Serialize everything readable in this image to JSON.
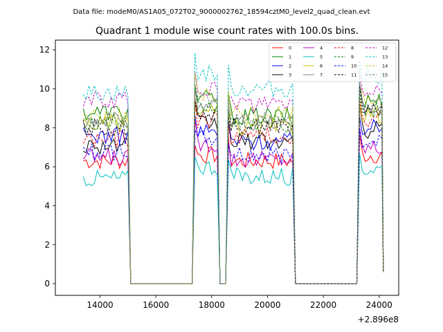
{
  "chart_data": {
    "type": "line",
    "suptitle": "Data file: modeM0/AS1A05_072T02_9000002762_18594cztM0_level2_quad_clean.evt",
    "title": "Quadrant 1 module wise count rates with 100.0s bins.",
    "xlabel": "",
    "ylabel": "",
    "x_offset_label": "+2.896e8",
    "xlim": [
      12400,
      24700
    ],
    "ylim": [
      -0.6,
      12.5
    ],
    "x_ticks": [
      14000,
      16000,
      18000,
      20000,
      22000,
      24000
    ],
    "x_tick_labels": [
      "14000",
      "16000",
      "18000",
      "20000",
      "22000",
      "24000"
    ],
    "y_ticks": [
      0,
      2,
      4,
      6,
      8,
      10,
      12
    ],
    "y_tick_labels": [
      "0",
      "2",
      "4",
      "6",
      "8",
      "10",
      "12"
    ],
    "legend_position": "top-right",
    "segments": [
      {
        "start": 13400,
        "end": 15000
      },
      {
        "start": 17400,
        "end": 18200
      },
      {
        "start": 18600,
        "end": 20900
      },
      {
        "start": 23300,
        "end": 24100
      }
    ],
    "gaps_zero": [
      {
        "start": 15100,
        "end": 17300
      },
      {
        "start": 18300,
        "end": 18400
      },
      {
        "start": 21000,
        "end": 23200
      }
    ],
    "series": [
      {
        "name": "0",
        "color": "#ff0000",
        "dash": "solid",
        "levels": [
          6.3,
          6.6,
          6.3,
          6.6
        ]
      },
      {
        "name": "1",
        "color": "#008000",
        "dash": "solid",
        "levels": [
          8.8,
          9.5,
          8.6,
          9.4
        ]
      },
      {
        "name": "2",
        "color": "#0000ff",
        "dash": "solid",
        "levels": [
          7.6,
          7.8,
          7.3,
          8.0
        ]
      },
      {
        "name": "3",
        "color": "#000000",
        "dash": "solid",
        "levels": [
          7.1,
          8.2,
          7.3,
          7.9
        ]
      },
      {
        "name": "4",
        "color": "#bf00bf",
        "dash": "solid",
        "levels": [
          6.5,
          7.2,
          6.4,
          7.0
        ]
      },
      {
        "name": "5",
        "color": "#00bfbf",
        "dash": "solid",
        "levels": [
          5.4,
          6.0,
          5.5,
          5.9
        ]
      },
      {
        "name": "6",
        "color": "#bfbf00",
        "dash": "solid",
        "levels": [
          8.2,
          8.8,
          8.0,
          8.7
        ]
      },
      {
        "name": "7",
        "color": "#808080",
        "dash": "solid",
        "levels": [
          8.4,
          9.2,
          8.3,
          9.1
        ]
      },
      {
        "name": "8",
        "color": "#ff0000",
        "dash": "dashed",
        "levels": [
          7.4,
          8.4,
          7.6,
          8.5
        ]
      },
      {
        "name": "9",
        "color": "#008000",
        "dash": "dashed",
        "levels": [
          8.3,
          9.0,
          8.2,
          9.0
        ]
      },
      {
        "name": "10",
        "color": "#0000ff",
        "dash": "dashed",
        "levels": [
          6.8,
          7.4,
          6.6,
          7.4
        ]
      },
      {
        "name": "11",
        "color": "#000000",
        "dash": "dashed",
        "levels": [
          8.0,
          8.8,
          8.1,
          8.9
        ]
      },
      {
        "name": "12",
        "color": "#bf00bf",
        "dash": "dashed",
        "levels": [
          9.4,
          10.0,
          9.2,
          9.9
        ]
      },
      {
        "name": "13",
        "color": "#00bfbf",
        "dash": "dashed",
        "levels": [
          9.8,
          10.8,
          10.0,
          10.7
        ]
      },
      {
        "name": "14",
        "color": "#bfbf00",
        "dash": "dashed",
        "levels": [
          8.6,
          9.6,
          8.7,
          9.5
        ]
      },
      {
        "name": "15",
        "color": "#808080",
        "dash": "dashed",
        "levels": [
          8.0,
          9.4,
          8.4,
          9.2
        ]
      }
    ]
  }
}
